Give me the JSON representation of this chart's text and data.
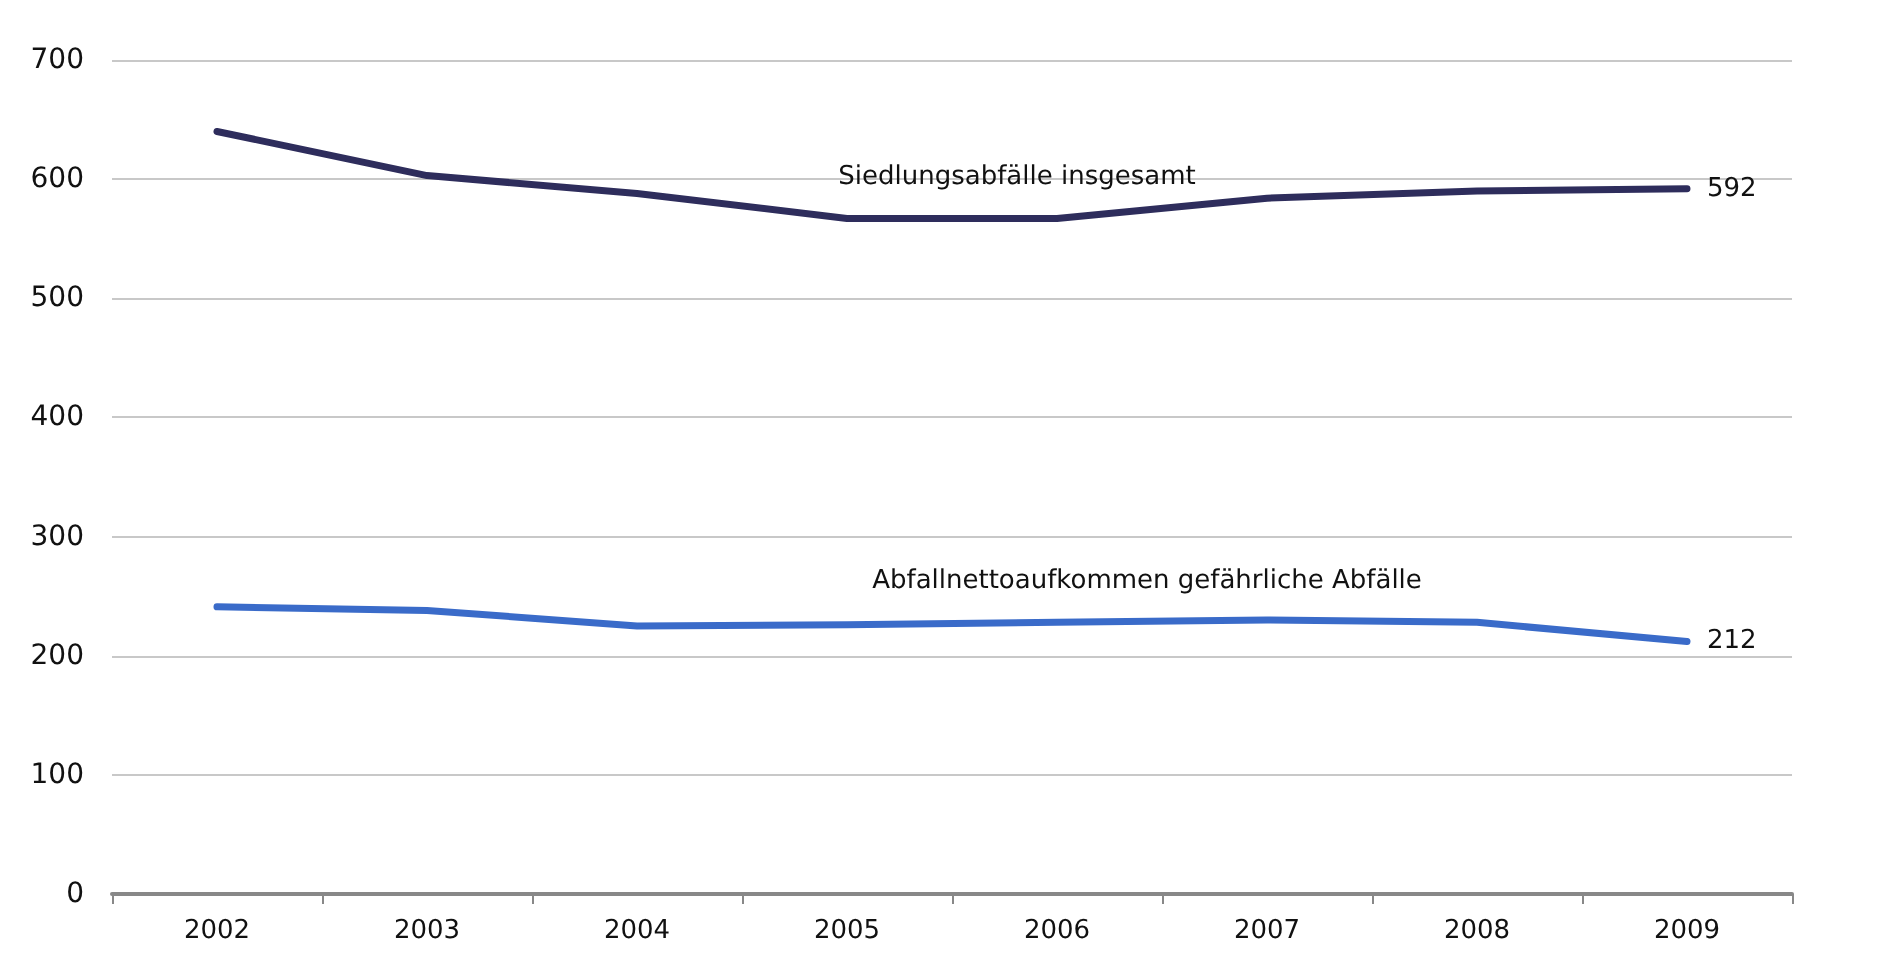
{
  "chart_data": {
    "type": "line",
    "categories": [
      "2002",
      "2003",
      "2004",
      "2005",
      "2006",
      "2007",
      "2008",
      "2009"
    ],
    "series": [
      {
        "name": "Siedlungsabfälle insgesamt",
        "color": "#2e2d5c",
        "values": [
          640,
          603,
          588,
          567,
          567,
          584,
          590,
          592
        ],
        "value_labels": [
          null,
          null,
          null,
          null,
          null,
          null,
          null,
          "592"
        ]
      },
      {
        "name": "Abfallnettoaufkommen gefährliche Abfälle",
        "color": "#3a6bc9",
        "values": [
          241,
          238,
          225,
          226,
          228,
          230,
          228,
          212
        ],
        "value_labels": [
          null,
          null,
          null,
          null,
          null,
          null,
          null,
          "212"
        ]
      }
    ],
    "ylim": [
      0,
      700
    ],
    "yticks": [
      0,
      100,
      200,
      300,
      400,
      500,
      600,
      700
    ],
    "grid": "y",
    "legend": false,
    "marker": "none",
    "line_style": "solid"
  }
}
